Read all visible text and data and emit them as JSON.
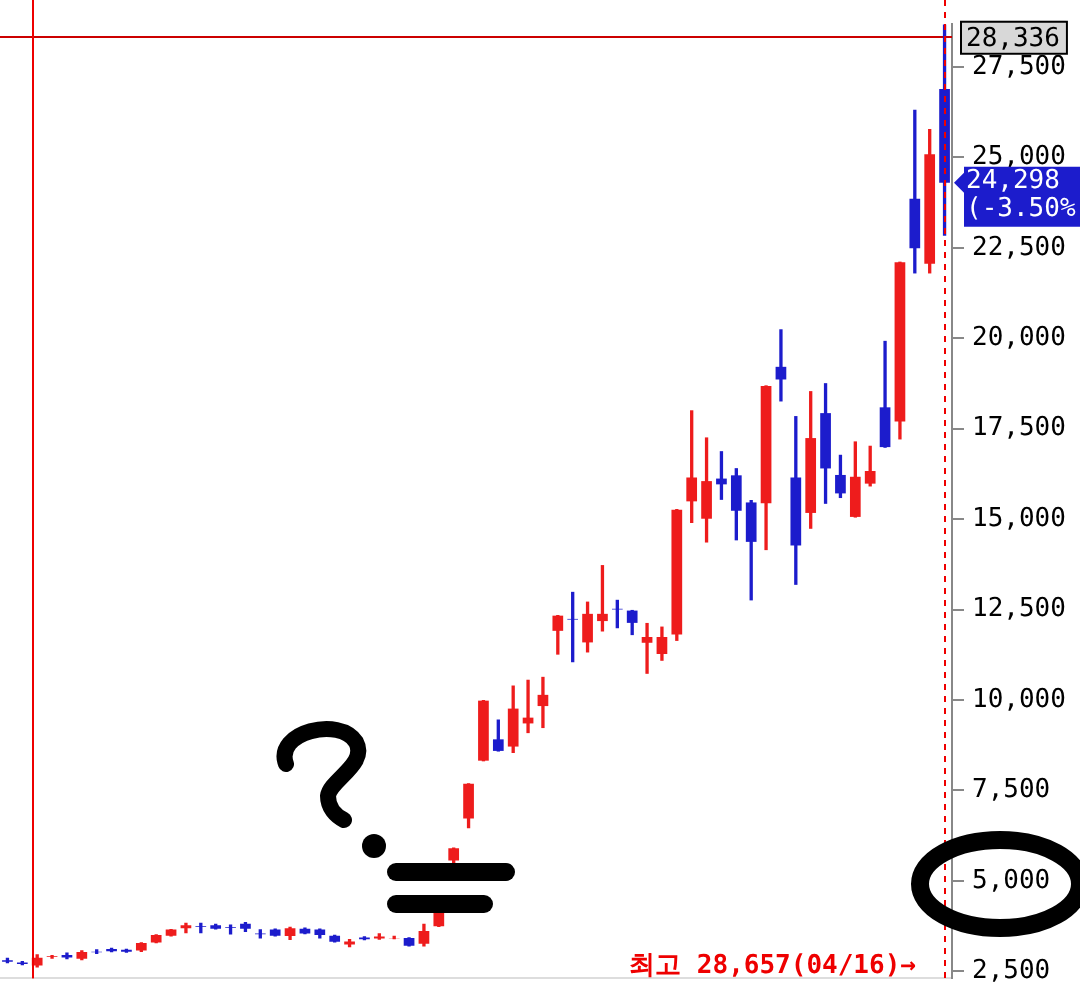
{
  "chart_data": {
    "type": "candlestick",
    "categories": [
      null,
      null,
      null,
      null,
      null,
      null,
      null,
      null,
      null,
      null,
      null,
      null,
      null,
      null,
      null,
      null,
      null,
      null,
      null,
      null,
      null,
      null,
      null,
      null,
      null,
      null,
      null,
      null,
      null,
      null,
      null,
      null,
      null,
      null,
      null,
      null,
      null,
      null,
      null,
      null,
      null,
      null,
      null,
      null,
      null,
      null,
      null,
      null,
      null,
      null,
      null,
      null,
      null,
      null,
      null,
      null,
      null,
      null,
      null,
      null,
      null,
      null,
      null,
      null
    ],
    "ohlc": [
      [
        2800,
        2850,
        2740,
        2760
      ],
      [
        2740,
        2760,
        2680,
        2700
      ],
      [
        2660,
        2950,
        2620,
        2870
      ],
      [
        2890,
        2930,
        2860,
        2910
      ],
      [
        2950,
        3000,
        2850,
        2880
      ],
      [
        2840,
        3060,
        2820,
        3030
      ],
      [
        3040,
        3090,
        2990,
        3020
      ],
      [
        3110,
        3130,
        3040,
        3050
      ],
      [
        3090,
        3100,
        3030,
        3040
      ],
      [
        3070,
        3280,
        3050,
        3280
      ],
      [
        3290,
        3500,
        3290,
        3500
      ],
      [
        3480,
        3650,
        3480,
        3650
      ],
      [
        3690,
        3820,
        3570,
        3770
      ],
      [
        3750,
        3820,
        3570,
        3730
      ],
      [
        3770,
        3790,
        3670,
        3670
      ],
      [
        3720,
        3770,
        3530,
        3700
      ],
      [
        3810,
        3840,
        3600,
        3670
      ],
      [
        3540,
        3640,
        3420,
        3520
      ],
      [
        3650,
        3660,
        3480,
        3480
      ],
      [
        3470,
        3710,
        3380,
        3690
      ],
      [
        3670,
        3690,
        3540,
        3540
      ],
      [
        3650,
        3660,
        3420,
        3500
      ],
      [
        3480,
        3490,
        3310,
        3310
      ],
      [
        3240,
        3370,
        3180,
        3320
      ],
      [
        3430,
        3450,
        3370,
        3380
      ],
      [
        3400,
        3530,
        3390,
        3460
      ],
      [
        3410,
        3460,
        3400,
        3420
      ],
      [
        3420,
        3420,
        3200,
        3200
      ],
      [
        3260,
        3790,
        3200,
        3610
      ],
      [
        3740,
        4260,
        3740,
        4260
      ],
      [
        5560,
        5900,
        5470,
        5900
      ],
      [
        6720,
        7680,
        6470,
        7680
      ],
      [
        8320,
        9980,
        8320,
        9980
      ],
      [
        8910,
        9440,
        8590,
        8590
      ],
      [
        8710,
        10380,
        8550,
        9760
      ],
      [
        9350,
        10540,
        9100,
        9510
      ],
      [
        9830,
        10620,
        9240,
        10140
      ],
      [
        11910,
        12330,
        11270,
        12330
      ],
      [
        12240,
        12970,
        11060,
        12220
      ],
      [
        11590,
        12700,
        11330,
        12380
      ],
      [
        12180,
        13710,
        11910,
        12380
      ],
      [
        12520,
        12750,
        12000,
        12500
      ],
      [
        12470,
        12470,
        11810,
        12130
      ],
      [
        11580,
        12110,
        10740,
        11740
      ],
      [
        11270,
        12010,
        11100,
        11740
      ],
      [
        11810,
        15260,
        11650,
        15260
      ],
      [
        15490,
        17990,
        14910,
        16150
      ],
      [
        15010,
        17240,
        14370,
        16050
      ],
      [
        16120,
        16860,
        15550,
        15960
      ],
      [
        16210,
        16390,
        14430,
        15230
      ],
      [
        15460,
        15510,
        12770,
        14370
      ],
      [
        15440,
        18680,
        14160,
        18680
      ],
      [
        19210,
        20230,
        18270,
        18860
      ],
      [
        16150,
        17830,
        13200,
        14270
      ],
      [
        15170,
        18520,
        14750,
        17240
      ],
      [
        17930,
        18740,
        15440,
        16400
      ],
      [
        16220,
        16760,
        15600,
        15710
      ],
      [
        15060,
        17130,
        15060,
        16170
      ],
      [
        15980,
        17010,
        15920,
        16330
      ],
      [
        18090,
        19910,
        16990,
        16990
      ],
      [
        17700,
        22100,
        17220,
        22100
      ],
      [
        23860,
        26300,
        21810,
        22490
      ],
      [
        22060,
        25770,
        21810,
        25090
      ],
      [
        26890,
        28657,
        22850,
        24298
      ]
    ],
    "colors": [
      "#1c1ccc",
      "#1c1ccc",
      "#ee1c1c",
      "#ee1c1c",
      "#1c1ccc",
      "#ee1c1c",
      "#1c1ccc",
      "#1c1ccc",
      "#1c1ccc",
      "#ee1c1c",
      "#ee1c1c",
      "#ee1c1c",
      "#ee1c1c",
      "#1c1ccc",
      "#1c1ccc",
      "#1c1ccc",
      "#1c1ccc",
      "#1c1ccc",
      "#1c1ccc",
      "#ee1c1c",
      "#1c1ccc",
      "#1c1ccc",
      "#1c1ccc",
      "#ee1c1c",
      "#1c1ccc",
      "#ee1c1c",
      "#ee1c1c",
      "#1c1ccc",
      "#ee1c1c",
      "#ee1c1c",
      "#ee1c1c",
      "#ee1c1c",
      "#ee1c1c",
      "#1c1ccc",
      "#ee1c1c",
      "#ee1c1c",
      "#ee1c1c",
      "#ee1c1c",
      "#1c1ccc",
      "#ee1c1c",
      "#ee1c1c",
      "#1c1ccc",
      "#1c1ccc",
      "#ee1c1c",
      "#ee1c1c",
      "#ee1c1c",
      "#ee1c1c",
      "#ee1c1c",
      "#1c1ccc",
      "#1c1ccc",
      "#1c1ccc",
      "#ee1c1c",
      "#1c1ccc",
      "#1c1ccc",
      "#ee1c1c",
      "#1c1ccc",
      "#1c1ccc",
      "#ee1c1c",
      "#ee1c1c",
      "#1c1ccc",
      "#ee1c1c",
      "#1c1ccc",
      "#ee1c1c",
      "#1c1ccc"
    ],
    "ylim": [
      2300,
      28700
    ],
    "yticks": [
      {
        "value": 2500,
        "label": "2,500"
      },
      {
        "value": 5000,
        "label": "5,000"
      },
      {
        "value": 7500,
        "label": "7,500"
      },
      {
        "value": 10000,
        "label": "10,000"
      },
      {
        "value": 12500,
        "label": "12,500"
      },
      {
        "value": 15000,
        "label": "15,000"
      },
      {
        "value": 17500,
        "label": "17,500"
      },
      {
        "value": 20000,
        "label": "20,000"
      },
      {
        "value": 22500,
        "label": "22,500"
      },
      {
        "value": 25000,
        "label": "25,000"
      },
      {
        "value": 27500,
        "label": "27,500"
      }
    ],
    "grid": false,
    "legend": false,
    "ref_lines": [
      {
        "axis": "y",
        "value": 28336,
        "label": "28,336",
        "color": "#cc0000"
      }
    ],
    "annotations": [
      "24,298 (-3.50%)",
      "최고 28,657(04/16)→"
    ]
  }
}
